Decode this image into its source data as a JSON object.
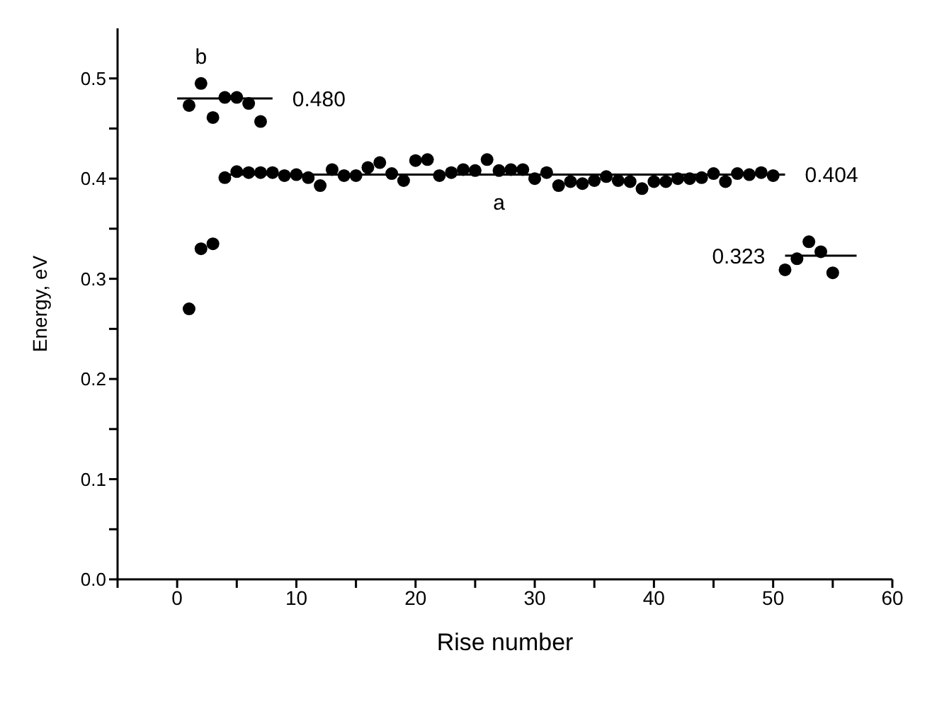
{
  "chart_data": {
    "type": "scatter",
    "xlabel": "Rise number",
    "ylabel": "Energy, eV",
    "xlim": [
      -5,
      60
    ],
    "ylim": [
      0,
      0.55
    ],
    "xticks": [
      {
        "value": -5,
        "label": null
      },
      0,
      {
        "value": 5,
        "label": null
      },
      10,
      {
        "value": 15,
        "label": null
      },
      20,
      {
        "value": 25,
        "label": null
      },
      30,
      {
        "value": 35,
        "label": null
      },
      40,
      {
        "value": 45,
        "label": null
      },
      50,
      {
        "value": 55,
        "label": null
      },
      60
    ],
    "yticks": [
      {
        "value": 0,
        "label": "0.0"
      },
      {
        "value": 0.05,
        "label": null
      },
      0.1,
      {
        "value": 0.15,
        "label": null
      },
      0.2,
      {
        "value": 0.25,
        "label": null
      },
      0.3,
      {
        "value": 0.35,
        "label": null
      },
      0.4,
      {
        "value": 0.45,
        "label": null
      },
      0.5
    ],
    "grid": false,
    "marker": "circle",
    "series": [
      {
        "color": "#000000",
        "x": [
          1,
          2,
          3,
          4,
          5,
          6,
          7,
          8,
          9,
          10,
          11,
          12,
          13,
          14,
          15,
          16,
          17,
          18,
          19,
          20,
          21,
          22,
          23,
          24,
          25,
          26,
          27,
          28,
          29,
          30,
          31,
          32,
          33,
          34,
          35,
          36,
          37,
          38,
          39,
          40,
          41,
          42,
          43,
          44,
          45,
          46,
          47,
          48,
          49,
          50,
          51,
          52,
          53,
          54,
          55
        ],
        "values": [
          0.27,
          0.33,
          0.335,
          0.401,
          0.407,
          0.406,
          0.406,
          0.406,
          0.403,
          0.404,
          0.401,
          0.393,
          0.409,
          0.403,
          0.403,
          0.411,
          0.416,
          0.405,
          0.398,
          0.418,
          0.419,
          0.403,
          0.406,
          0.409,
          0.408,
          0.419,
          0.408,
          0.409,
          0.409,
          0.4,
          0.406,
          0.393,
          0.397,
          0.395,
          0.398,
          0.402,
          0.398,
          0.397,
          0.39,
          0.397,
          0.397,
          0.4,
          0.4,
          0.401,
          0.405,
          0.397,
          0.405,
          0.404,
          0.406,
          0.403,
          0.309,
          0.32,
          0.337,
          0.327,
          0.306
        ]
      },
      {
        "color": "#000000",
        "x": [
          1,
          2,
          3,
          4,
          5,
          6,
          7
        ],
        "values": [
          0.473,
          0.495,
          0.461,
          0.481,
          0.481,
          0.475,
          0.457
        ]
      },
      {
        "type": "line",
        "marker": "none",
        "color": "#000000",
        "x": [
          0,
          8
        ],
        "values": [
          0.48,
          0.48
        ]
      },
      {
        "type": "line",
        "marker": "none",
        "color": "#000000",
        "x": [
          4,
          51
        ],
        "values": [
          0.404,
          0.404
        ]
      },
      {
        "type": "line",
        "marker": "none",
        "color": "#000000",
        "x": [
          51,
          57
        ],
        "values": [
          0.323,
          0.323
        ]
      }
    ],
    "annotations": [
      {
        "text": "b",
        "x": 2,
        "y": 0.495
      },
      {
        "text": "a",
        "x": 27,
        "y": 0.404
      },
      {
        "text": "0.480",
        "x": 8,
        "y": 0.48
      },
      {
        "text": "0.404",
        "x": 51,
        "y": 0.404
      },
      {
        "text": "0.323",
        "x": 51,
        "y": 0.323
      }
    ]
  }
}
